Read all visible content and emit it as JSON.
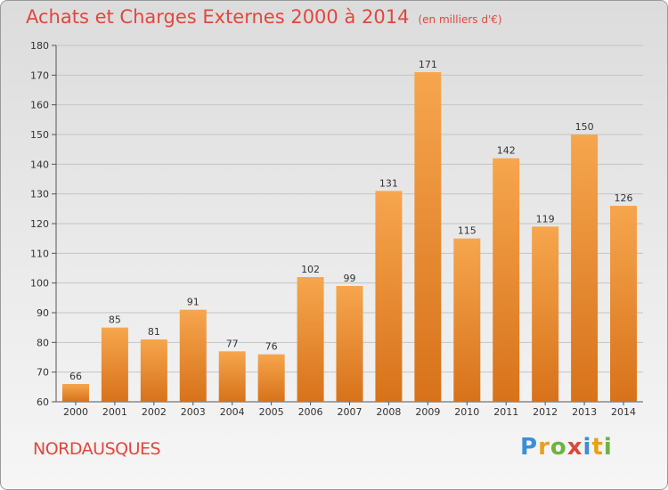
{
  "header": {
    "title": "Achats et Charges Externes 2000 à 2014",
    "unit": "(en milliers d'€)"
  },
  "footer": {
    "commune": "NORDAUSQUES",
    "logo_text": "Proxiti",
    "logo_letters": [
      {
        "ch": "P",
        "color": "#3a8fd6"
      },
      {
        "ch": "r",
        "color": "#e8a020"
      },
      {
        "ch": "o",
        "color": "#6db33f"
      },
      {
        "ch": "x",
        "color": "#d84a3a"
      },
      {
        "ch": "i",
        "color": "#3a8fd6"
      },
      {
        "ch": "t",
        "color": "#e8a020"
      },
      {
        "ch": "i",
        "color": "#6db33f"
      }
    ]
  },
  "colors": {
    "bar_light": "#f6a64e",
    "bar_dark": "#d7721a",
    "grid": "#c4c4c4",
    "axis_text": "#333333",
    "title": "#e0483e"
  },
  "chart_data": {
    "type": "bar",
    "title": "Achats et Charges Externes 2000 à 2014",
    "xlabel": "",
    "ylabel": "",
    "categories": [
      "2000",
      "2001",
      "2002",
      "2003",
      "2004",
      "2005",
      "2006",
      "2007",
      "2008",
      "2009",
      "2010",
      "2011",
      "2012",
      "2013",
      "2014"
    ],
    "values": [
      66,
      85,
      81,
      91,
      77,
      76,
      102,
      99,
      131,
      171,
      115,
      142,
      119,
      150,
      126
    ],
    "ylim": [
      60,
      180
    ],
    "yticks": [
      60,
      70,
      80,
      90,
      100,
      110,
      120,
      130,
      140,
      150,
      160,
      170,
      180
    ],
    "grid": true
  }
}
